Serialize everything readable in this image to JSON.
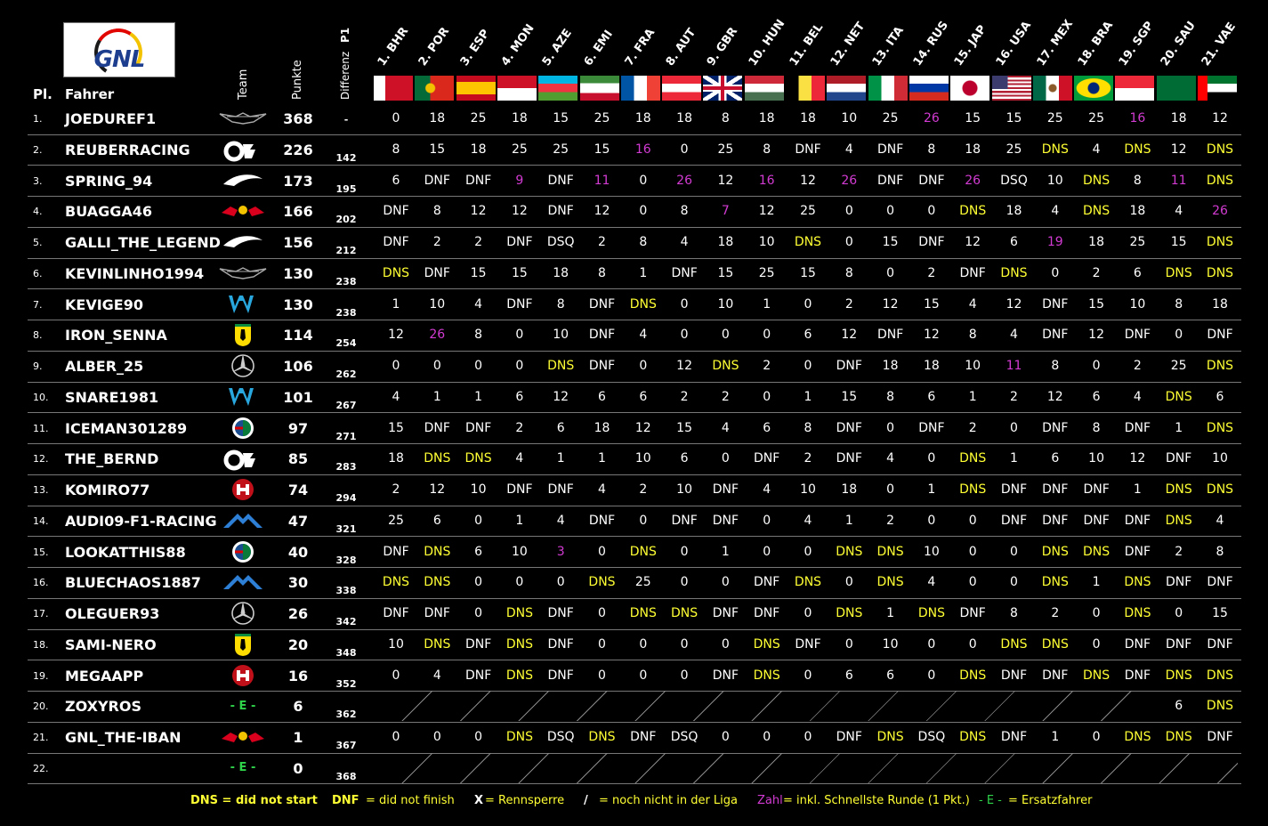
{
  "logo": {
    "text": "GNL"
  },
  "headers": {
    "pl": "Pl.",
    "fahrer": "Fahrer",
    "team": "Team",
    "punkte": "Punkte",
    "differenz": "Differenz",
    "p1": "P1"
  },
  "races": [
    "1. BHR",
    "2. POR",
    "3. ESP",
    "4. MON",
    "5. AZE",
    "6. EMI",
    "7. FRA",
    "8. AUT",
    "9. GBR",
    "10. HUN",
    "11. BEL",
    "12. NET",
    "13. ITA",
    "14. RUS",
    "15. JAP",
    "16. USA",
    "17. MEX",
    "18. BRA",
    "19. SGP",
    "20. SAU",
    "21. VAE"
  ],
  "flags": [
    "bahrain-flag",
    "portugal-flag",
    "spain-flag",
    "monaco-flag",
    "azerbaijan-flag",
    "italy-emilia-flag",
    "france-flag",
    "austria-flag",
    "uk-flag",
    "hungary-flag",
    "belgium-flag",
    "netherlands-flag",
    "italy-flag",
    "russia-flag",
    "japan-flag",
    "usa-flag",
    "mexico-flag",
    "brazil-flag",
    "singapore-flag",
    "saudi-arabia-flag",
    "uae-flag"
  ],
  "colors": {
    "dns": "#ffff33",
    "fastest_lap": "#d23bd2",
    "reserve": "#2fd34a",
    "background": "#000000"
  },
  "rows": [
    {
      "pl": "1.",
      "name": "JOEDUREF1",
      "team": "aston-martin",
      "pts": "368",
      "diff": "-",
      "res": [
        "0",
        "18",
        "25",
        "18",
        "15",
        "25",
        "18",
        "18",
        "8",
        "18",
        "18",
        "10",
        "25",
        "26",
        "15",
        "15",
        "25",
        "25",
        "16",
        "18",
        "12"
      ]
    },
    {
      "pl": "2.",
      "name": "REUBERRACING",
      "team": "alphatauri",
      "pts": "226",
      "diff": "142",
      "res": [
        "8",
        "15",
        "18",
        "25",
        "25",
        "15",
        "16",
        "0",
        "25",
        "8",
        "DNF",
        "4",
        "DNF",
        "8",
        "18",
        "25",
        "DNS",
        "4",
        "DNS",
        "12",
        "DNS"
      ]
    },
    {
      "pl": "3.",
      "name": "SPRING_94",
      "team": "mclaren",
      "pts": "173",
      "diff": "195",
      "res": [
        "6",
        "DNF",
        "DNF",
        "9",
        "DNF",
        "11",
        "0",
        "26",
        "12",
        "16",
        "12",
        "26",
        "DNF",
        "DNF",
        "26",
        "DSQ",
        "10",
        "DNS",
        "8",
        "11",
        "DNS"
      ]
    },
    {
      "pl": "4.",
      "name": "BUAGGA46",
      "team": "red-bull",
      "pts": "166",
      "diff": "202",
      "res": [
        "DNF",
        "8",
        "12",
        "12",
        "DNF",
        "12",
        "0",
        "8",
        "7",
        "12",
        "25",
        "0",
        "0",
        "0",
        "DNS",
        "18",
        "4",
        "DNS",
        "18",
        "4",
        "26"
      ]
    },
    {
      "pl": "5.",
      "name": "GALLI_THE_LEGEND",
      "team": "mclaren",
      "pts": "156",
      "diff": "212",
      "res": [
        "DNF",
        "2",
        "2",
        "DNF",
        "DSQ",
        "2",
        "8",
        "4",
        "18",
        "10",
        "DNS",
        "0",
        "15",
        "DNF",
        "12",
        "6",
        "19",
        "18",
        "25",
        "15",
        "DNS"
      ]
    },
    {
      "pl": "6.",
      "name": "KEVINLINHO1994",
      "team": "aston-martin",
      "pts": "130",
      "diff": "238",
      "res": [
        "DNS",
        "DNF",
        "15",
        "15",
        "18",
        "8",
        "1",
        "DNF",
        "15",
        "25",
        "15",
        "8",
        "0",
        "2",
        "DNF",
        "DNS",
        "0",
        "2",
        "6",
        "DNS",
        "DNS"
      ]
    },
    {
      "pl": "7.",
      "name": "KEVIGE90",
      "team": "williams",
      "pts": "130",
      "diff": "238",
      "res": [
        "1",
        "10",
        "4",
        "DNF",
        "8",
        "DNF",
        "DNS",
        "0",
        "10",
        "1",
        "0",
        "2",
        "12",
        "15",
        "4",
        "12",
        "DNF",
        "15",
        "10",
        "8",
        "18"
      ]
    },
    {
      "pl": "8.",
      "name": "IRON_SENNA",
      "team": "ferrari",
      "pts": "114",
      "diff": "254",
      "res": [
        "12",
        "26",
        "8",
        "0",
        "10",
        "DNF",
        "4",
        "0",
        "0",
        "0",
        "6",
        "12",
        "DNF",
        "12",
        "8",
        "4",
        "DNF",
        "12",
        "DNF",
        "0",
        "DNF"
      ]
    },
    {
      "pl": "9.",
      "name": "ALBER_25",
      "team": "mercedes",
      "pts": "106",
      "diff": "262",
      "res": [
        "0",
        "0",
        "0",
        "0",
        "DNS",
        "DNF",
        "0",
        "12",
        "DNS",
        "2",
        "0",
        "DNF",
        "18",
        "18",
        "10",
        "11",
        "8",
        "0",
        "2",
        "25",
        "DNS"
      ]
    },
    {
      "pl": "10.",
      "name": "SNARE1981",
      "team": "williams",
      "pts": "101",
      "diff": "267",
      "res": [
        "4",
        "1",
        "1",
        "6",
        "12",
        "6",
        "6",
        "2",
        "2",
        "0",
        "1",
        "15",
        "8",
        "6",
        "1",
        "2",
        "12",
        "6",
        "4",
        "DNS",
        "6"
      ]
    },
    {
      "pl": "11.",
      "name": "ICEMAN301289",
      "team": "alfa-romeo",
      "pts": "97",
      "diff": "271",
      "res": [
        "15",
        "DNF",
        "DNF",
        "2",
        "6",
        "18",
        "12",
        "15",
        "4",
        "6",
        "8",
        "DNF",
        "0",
        "DNF",
        "2",
        "0",
        "DNF",
        "8",
        "DNF",
        "1",
        "DNS"
      ]
    },
    {
      "pl": "12.",
      "name": "THE_BERND",
      "team": "alphatauri",
      "pts": "85",
      "diff": "283",
      "res": [
        "18",
        "DNS",
        "DNS",
        "4",
        "1",
        "1",
        "10",
        "6",
        "0",
        "DNF",
        "2",
        "DNF",
        "4",
        "0",
        "DNS",
        "1",
        "6",
        "10",
        "12",
        "DNF",
        "10"
      ]
    },
    {
      "pl": "13.",
      "name": "KOMIRO77",
      "team": "haas",
      "pts": "74",
      "diff": "294",
      "res": [
        "2",
        "12",
        "10",
        "DNF",
        "DNF",
        "4",
        "2",
        "10",
        "DNF",
        "4",
        "10",
        "18",
        "0",
        "1",
        "DNS",
        "DNF",
        "DNF",
        "DNF",
        "1",
        "DNS",
        "DNS"
      ]
    },
    {
      "pl": "14.",
      "name": "AUDI09-F1-RACING",
      "team": "alpine",
      "pts": "47",
      "diff": "321",
      "res": [
        "25",
        "6",
        "0",
        "1",
        "4",
        "DNF",
        "0",
        "DNF",
        "DNF",
        "0",
        "4",
        "1",
        "2",
        "0",
        "0",
        "DNF",
        "DNF",
        "DNF",
        "DNF",
        "DNS",
        "4"
      ]
    },
    {
      "pl": "15.",
      "name": "LOOKATTHIS88",
      "team": "alfa-romeo",
      "pts": "40",
      "diff": "328",
      "res": [
        "DNF",
        "DNS",
        "6",
        "10",
        "3",
        "0",
        "DNS",
        "0",
        "1",
        "0",
        "0",
        "DNS",
        "DNS",
        "10",
        "0",
        "0",
        "DNS",
        "DNS",
        "DNF",
        "2",
        "8"
      ]
    },
    {
      "pl": "16.",
      "name": "BLUECHAOS1887",
      "team": "alpine",
      "pts": "30",
      "diff": "338",
      "res": [
        "DNS",
        "DNS",
        "0",
        "0",
        "0",
        "DNS",
        "25",
        "0",
        "0",
        "DNF",
        "DNS",
        "0",
        "DNS",
        "4",
        "0",
        "0",
        "DNS",
        "1",
        "DNS",
        "DNF",
        "DNF"
      ]
    },
    {
      "pl": "17.",
      "name": "OLEGUER93",
      "team": "mercedes",
      "pts": "26",
      "diff": "342",
      "res": [
        "DNF",
        "DNF",
        "0",
        "DNS",
        "DNF",
        "0",
        "DNS",
        "DNS",
        "DNF",
        "DNF",
        "0",
        "DNS",
        "1",
        "DNS",
        "DNF",
        "8",
        "2",
        "0",
        "DNS",
        "0",
        "15"
      ]
    },
    {
      "pl": "18.",
      "name": "SAMI-NERO",
      "team": "ferrari",
      "pts": "20",
      "diff": "348",
      "res": [
        "10",
        "DNS",
        "DNF",
        "DNS",
        "DNF",
        "0",
        "0",
        "0",
        "0",
        "DNS",
        "DNF",
        "0",
        "10",
        "0",
        "0",
        "DNS",
        "DNS",
        "0",
        "DNF",
        "DNF",
        "DNF"
      ]
    },
    {
      "pl": "19.",
      "name": "MEGAAPP",
      "team": "haas",
      "pts": "16",
      "diff": "352",
      "res": [
        "0",
        "4",
        "DNF",
        "DNS",
        "DNF",
        "0",
        "0",
        "0",
        "DNF",
        "DNS",
        "0",
        "6",
        "6",
        "0",
        "DNS",
        "DNF",
        "DNF",
        "DNS",
        "DNF",
        "DNS",
        "DNS"
      ]
    },
    {
      "pl": "20.",
      "name": "ZOXYROS",
      "team": "reserve",
      "team_label": "- E -",
      "pts": "6",
      "diff": "362",
      "hatch_until": 19,
      "res": [
        "",
        "",
        "",
        "",
        "",
        "",
        "",
        "",
        "",
        "",
        "",
        "",
        "",
        "",
        "",
        "",
        "",
        "",
        "",
        "6",
        "DNS"
      ]
    },
    {
      "pl": "21.",
      "name": "GNL_THE-IBAN",
      "team": "red-bull",
      "pts": "1",
      "diff": "367",
      "res": [
        "0",
        "0",
        "0",
        "DNS",
        "DSQ",
        "DNS",
        "DNF",
        "DSQ",
        "0",
        "0",
        "0",
        "DNF",
        "DNS",
        "DSQ",
        "DNS",
        "DNF",
        "1",
        "0",
        "DNS",
        "DNS",
        "DNF"
      ]
    },
    {
      "pl": "22.",
      "name": "",
      "team": "reserve",
      "team_label": "- E -",
      "pts": "0",
      "diff": "368",
      "hatch_until": 21,
      "res": [
        "",
        "",
        "",
        "",
        "",
        "",
        "",
        "",
        "",
        "",
        "",
        "",
        "",
        "",
        "",
        "",
        "",
        "",
        "",
        "",
        ""
      ]
    }
  ],
  "fastest": [
    [
      0,
      13
    ],
    [
      0,
      18
    ],
    [
      1,
      6
    ],
    [
      2,
      3
    ],
    [
      2,
      5
    ],
    [
      2,
      7
    ],
    [
      2,
      9
    ],
    [
      2,
      11
    ],
    [
      2,
      14
    ],
    [
      2,
      19
    ],
    [
      3,
      8
    ],
    [
      3,
      20
    ],
    [
      4,
      16
    ],
    [
      7,
      1
    ],
    [
      8,
      15
    ],
    [
      14,
      4
    ]
  ],
  "legend": {
    "dns": "DNS = did not start",
    "dnf_key": "DNF",
    "dnf_text": "= did not finish",
    "x_key": "X",
    "x_text": "= Rennsperre",
    "slash_key": "/",
    "slash_text": "= noch nicht in der Liga",
    "zahl_key": "Zahl",
    "zahl_text": "= inkl. Schnellste Runde (1 Pkt.)",
    "e_key": "- E -",
    "e_text": "= Ersatzfahrer"
  }
}
